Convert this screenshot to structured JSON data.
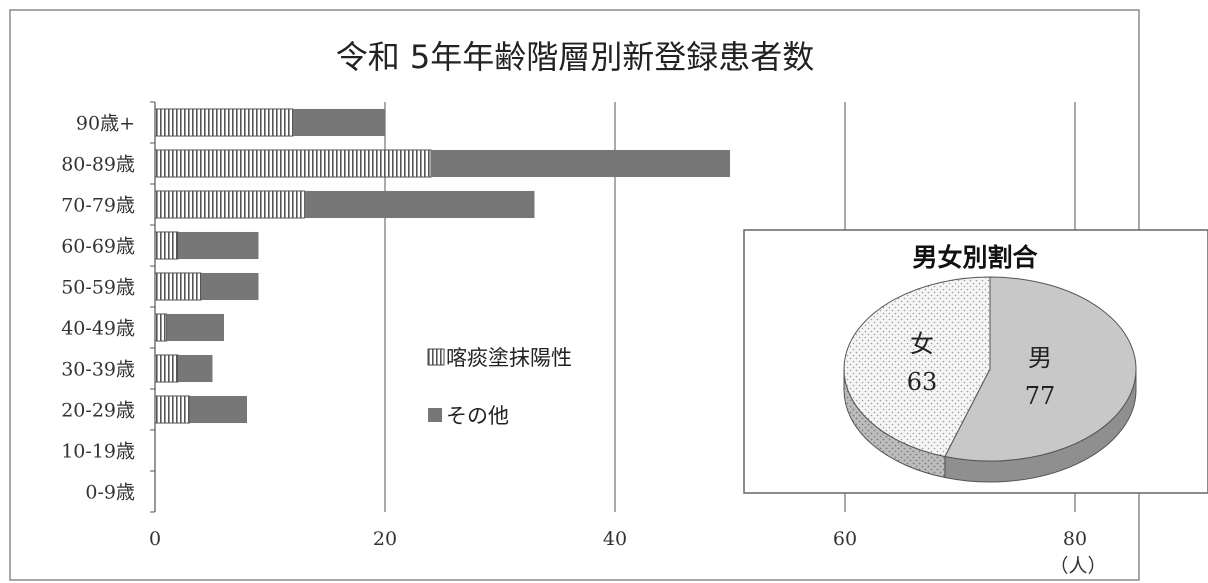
{
  "chart_data": [
    {
      "type": "bar",
      "orientation": "horizontal",
      "stacked": true,
      "title": "令和 5年年齢階層別新登録患者数",
      "categories": [
        "90歳+",
        "80-89歳",
        "70-79歳",
        "60-69歳",
        "50-59歳",
        "40-49歳",
        "30-39歳",
        "20-29歳",
        "10-19歳",
        "0-9歳"
      ],
      "series": [
        {
          "name": "喀痰塗抹陽性",
          "values": [
            12,
            24,
            13,
            2,
            4,
            1,
            2,
            3,
            0,
            0
          ],
          "pattern": "vertical-stripes",
          "color": "#ffffff"
        },
        {
          "name": "その他",
          "values": [
            8,
            26,
            20,
            7,
            5,
            5,
            3,
            5,
            0,
            0
          ],
          "color": "#777777"
        }
      ],
      "xticks": [
        "0",
        "20",
        "40",
        "60",
        "80"
      ],
      "xlim": [
        0,
        80
      ],
      "xlabel": "（人）",
      "ylabel": "",
      "grid": "vertical",
      "legend_position": "middle"
    },
    {
      "type": "pie",
      "title": "男女別割合",
      "style": "3d",
      "slices": [
        {
          "label": "男",
          "value": 77,
          "color": "#c8c8c8"
        },
        {
          "label": "女",
          "value": 63,
          "color": "#f4f4f4",
          "pattern": "dots"
        }
      ]
    }
  ]
}
